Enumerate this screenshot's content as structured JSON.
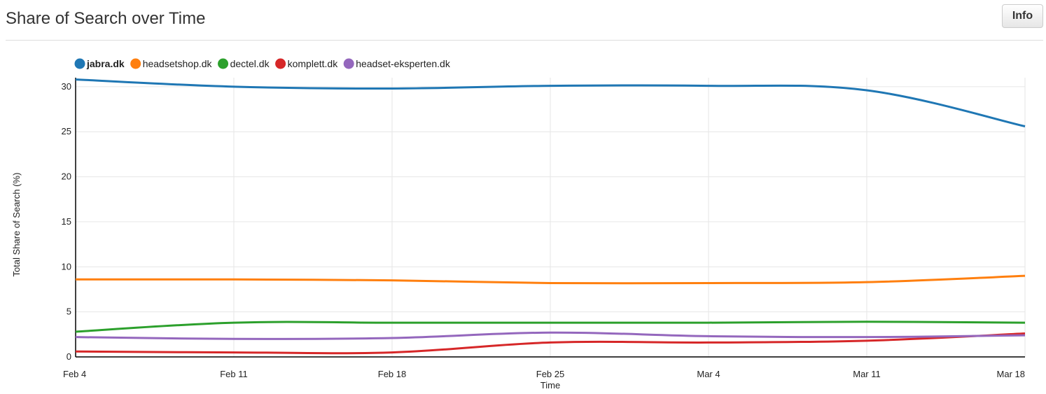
{
  "header": {
    "title": "Share of Search over Time",
    "info_label": "Info"
  },
  "chart_data": {
    "type": "line",
    "xlabel": "Time",
    "ylabel": "Total Share of Search (%)",
    "x": [
      "Feb 4",
      "Feb 11",
      "Feb 18",
      "Feb 25",
      "Mar 4",
      "Mar 11",
      "Mar 18"
    ],
    "ylim": [
      0,
      31
    ],
    "yticks": [
      0,
      5,
      10,
      15,
      20,
      25,
      30
    ],
    "grid": true,
    "legend_position": "top-left",
    "series": [
      {
        "name": "jabra.dk",
        "color": "#1f77b4",
        "values": [
          30.8,
          30.0,
          29.8,
          30.1,
          30.1,
          29.6,
          25.6
        ]
      },
      {
        "name": "headsetshop.dk",
        "color": "#ff7f0e",
        "values": [
          8.6,
          8.6,
          8.5,
          8.2,
          8.2,
          8.3,
          9.0
        ]
      },
      {
        "name": "dectel.dk",
        "color": "#2ca02c",
        "values": [
          2.8,
          3.8,
          3.8,
          3.8,
          3.8,
          3.9,
          3.8
        ]
      },
      {
        "name": "komplett.dk",
        "color": "#d62728",
        "values": [
          0.6,
          0.5,
          0.5,
          1.6,
          1.6,
          1.8,
          2.6
        ]
      },
      {
        "name": "headset-eksperten.dk",
        "color": "#9467bd",
        "values": [
          2.2,
          2.0,
          2.1,
          2.7,
          2.3,
          2.2,
          2.4
        ]
      }
    ]
  }
}
